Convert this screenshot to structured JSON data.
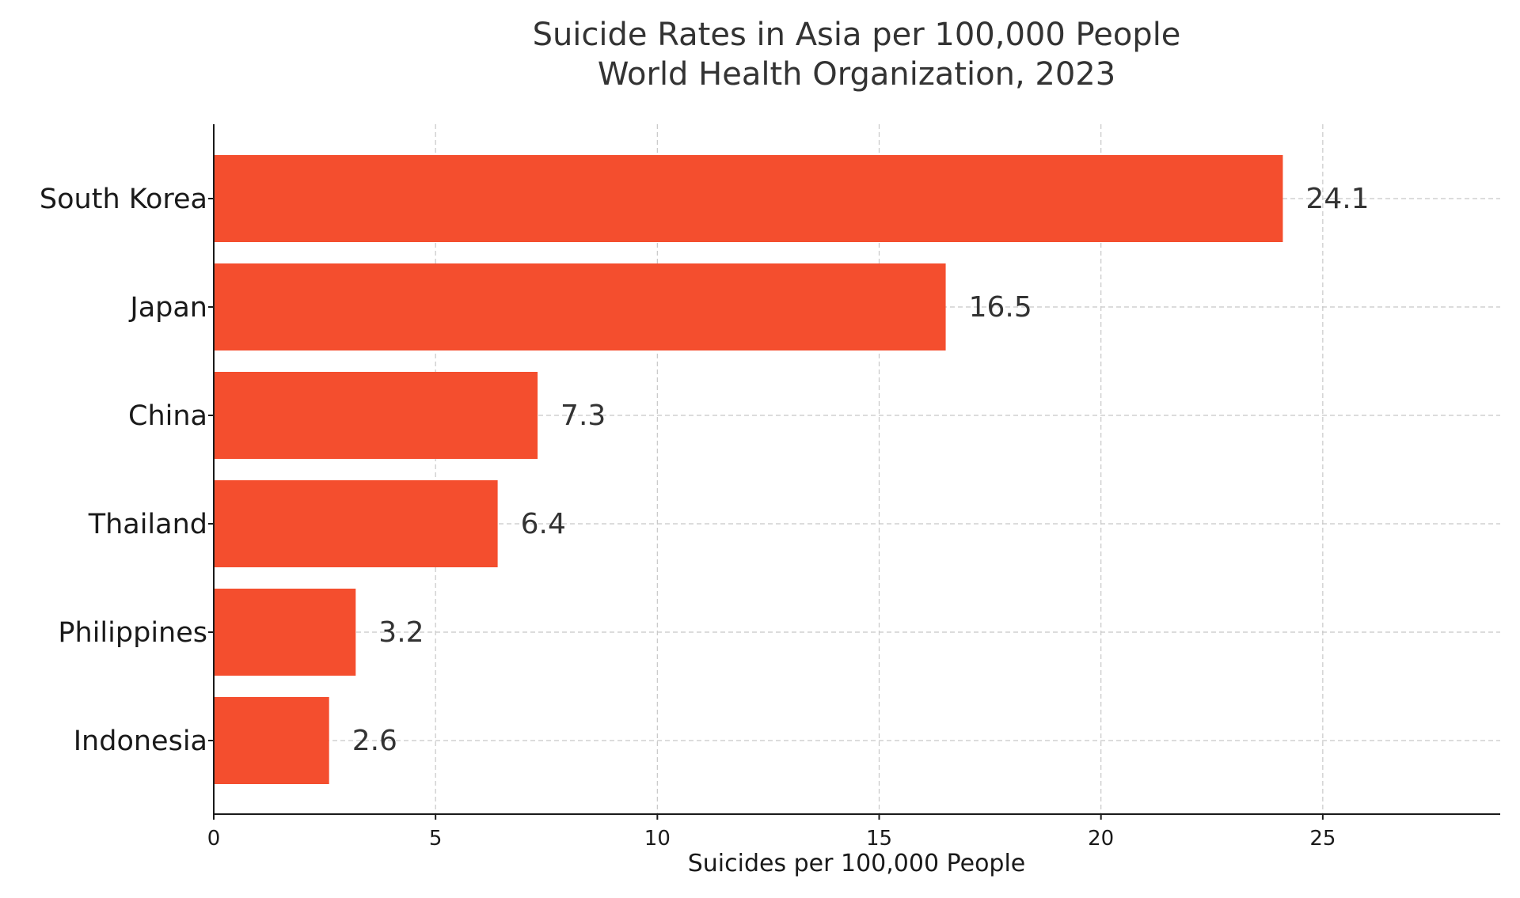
{
  "chart_data": {
    "type": "bar",
    "orientation": "horizontal",
    "title": "Suicide Rates in Asia per 100,000 People",
    "subtitle": "World Health Organization, 2023",
    "xlabel": "Suicides per 100,000 People",
    "ylabel": "",
    "categories": [
      "South Korea",
      "Japan",
      "China",
      "Thailand",
      "Philippines",
      "Indonesia"
    ],
    "values": [
      24.1,
      16.5,
      7.3,
      6.4,
      3.2,
      2.6
    ],
    "value_labels": [
      "24.1",
      "16.5",
      "7.3",
      "6.4",
      "3.2",
      "2.6"
    ],
    "xlim": [
      0,
      29
    ],
    "xticks": [
      0,
      5,
      10,
      15,
      20,
      25
    ],
    "xtick_labels": [
      "0",
      "5",
      "10",
      "15",
      "20",
      "25"
    ],
    "grid": true,
    "legend": "none",
    "bar_color": "#f44e2e",
    "axis_color": "#1a1a1a",
    "grid_color": "#c8c8c8",
    "text_color": "#333333"
  }
}
